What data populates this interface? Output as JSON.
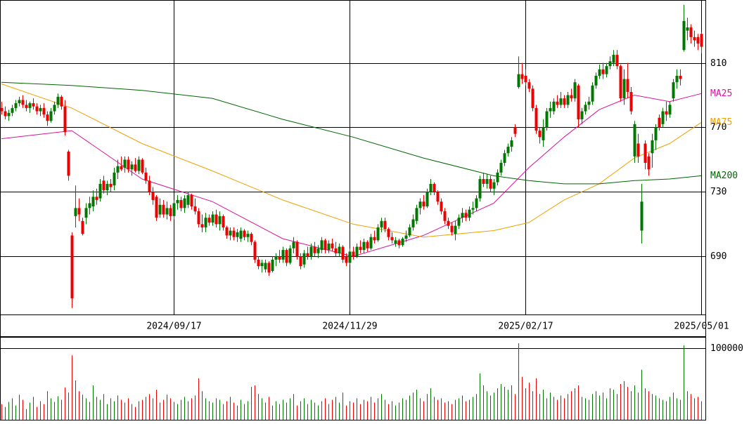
{
  "chart_data": {
    "type": "candlestick",
    "up_color": "#007700",
    "down_color": "#ee0000",
    "ylim": [
      654,
      849
    ],
    "yticks": [
      690,
      730,
      770,
      810
    ],
    "xlim": [
      0,
      200
    ],
    "xticks": [
      {
        "value": 49,
        "label": "2024/09/17"
      },
      {
        "value": 99,
        "label": "2024/11/29"
      },
      {
        "value": 149,
        "label": "2025/02/17"
      },
      {
        "value": 199,
        "label": "2025/05/01"
      }
    ],
    "candles": [
      [
        782,
        786,
        778,
        780
      ],
      [
        780,
        783,
        775,
        777
      ],
      [
        777,
        781,
        774,
        779
      ],
      [
        779,
        784,
        777,
        782
      ],
      [
        782,
        787,
        780,
        785
      ],
      [
        785,
        789,
        783,
        787
      ],
      [
        787,
        790,
        782,
        784
      ],
      [
        784,
        787,
        780,
        782
      ],
      [
        782,
        786,
        779,
        785
      ],
      [
        785,
        788,
        781,
        783
      ],
      [
        783,
        785,
        778,
        780
      ],
      [
        780,
        784,
        777,
        782
      ],
      [
        782,
        785,
        776,
        778
      ],
      [
        778,
        780,
        771,
        774
      ],
      [
        774,
        782,
        773,
        780
      ],
      [
        780,
        786,
        778,
        784
      ],
      [
        784,
        791,
        782,
        789
      ],
      [
        789,
        790,
        781,
        783
      ],
      [
        783,
        787,
        765,
        767
      ],
      [
        755,
        756,
        737,
        740
      ],
      [
        703,
        705,
        658,
        664
      ],
      [
        715,
        734,
        708,
        720
      ],
      [
        720,
        726,
        712,
        716
      ],
      [
        712,
        714,
        703,
        704
      ],
      [
        714,
        723,
        710,
        720
      ],
      [
        720,
        727,
        716,
        723
      ],
      [
        721,
        731,
        718,
        727
      ],
      [
        727,
        732,
        722,
        725
      ],
      [
        726,
        738,
        724,
        735
      ],
      [
        737,
        740,
        729,
        731
      ],
      [
        731,
        737,
        728,
        735
      ],
      [
        735,
        738,
        730,
        733
      ],
      [
        734,
        745,
        731,
        742
      ],
      [
        742,
        750,
        738,
        746
      ],
      [
        746,
        752,
        743,
        744
      ],
      [
        745,
        752,
        742,
        750
      ],
      [
        750,
        752,
        742,
        744
      ],
      [
        744,
        749,
        740,
        747
      ],
      [
        747,
        751,
        742,
        743
      ],
      [
        743,
        752,
        741,
        750
      ],
      [
        750,
        751,
        741,
        742
      ],
      [
        742,
        745,
        735,
        737
      ],
      [
        737,
        740,
        728,
        730
      ],
      [
        730,
        733,
        722,
        725
      ],
      [
        727,
        728,
        712,
        714
      ],
      [
        716,
        726,
        714,
        722
      ],
      [
        722,
        725,
        714,
        716
      ],
      [
        716,
        724,
        713,
        720
      ],
      [
        720,
        722,
        712,
        715
      ],
      [
        715,
        725,
        713,
        723
      ],
      [
        723,
        728,
        719,
        725
      ],
      [
        725,
        727,
        718,
        720
      ],
      [
        720,
        728,
        717,
        726
      ],
      [
        722,
        730,
        720,
        728
      ],
      [
        728,
        729,
        719,
        721
      ],
      [
        721,
        726,
        716,
        718
      ],
      [
        718,
        720,
        708,
        710
      ],
      [
        710,
        716,
        705,
        708
      ],
      [
        708,
        717,
        705,
        714
      ],
      [
        714,
        716,
        709,
        711
      ],
      [
        711,
        718,
        709,
        716
      ],
      [
        716,
        719,
        708,
        710
      ],
      [
        710,
        718,
        706,
        715
      ],
      [
        715,
        716,
        706,
        708
      ],
      [
        708,
        709,
        701,
        703
      ],
      [
        703,
        708,
        700,
        706
      ],
      [
        706,
        708,
        700,
        702
      ],
      [
        702,
        707,
        699,
        705
      ],
      [
        701,
        708,
        699,
        706
      ],
      [
        706,
        707,
        700,
        702
      ],
      [
        702,
        706,
        699,
        704
      ],
      [
        704,
        705,
        697,
        699
      ],
      [
        699,
        700,
        686,
        688
      ],
      [
        688,
        690,
        682,
        684
      ],
      [
        684,
        688,
        680,
        686
      ],
      [
        682,
        688,
        680,
        686
      ],
      [
        686,
        687,
        678,
        680
      ],
      [
        681,
        690,
        680,
        688
      ],
      [
        688,
        692,
        684,
        690
      ],
      [
        690,
        694,
        686,
        688
      ],
      [
        688,
        696,
        686,
        694
      ],
      [
        694,
        695,
        684,
        686
      ],
      [
        686,
        697,
        685,
        695
      ],
      [
        695,
        702,
        692,
        699
      ],
      [
        699,
        700,
        688,
        690
      ],
      [
        690,
        692,
        682,
        684
      ],
      [
        685,
        694,
        683,
        692
      ],
      [
        692,
        696,
        688,
        690
      ],
      [
        690,
        698,
        688,
        696
      ],
      [
        696,
        699,
        690,
        692
      ],
      [
        692,
        697,
        689,
        695
      ],
      [
        694,
        702,
        692,
        700
      ],
      [
        700,
        701,
        692,
        694
      ],
      [
        694,
        700,
        692,
        698
      ],
      [
        698,
        701,
        693,
        695
      ],
      [
        695,
        699,
        690,
        692
      ],
      [
        692,
        698,
        690,
        696
      ],
      [
        696,
        697,
        686,
        688
      ],
      [
        690,
        692,
        684,
        686
      ],
      [
        686,
        695,
        685,
        693
      ],
      [
        693,
        696,
        688,
        690
      ],
      [
        690,
        698,
        689,
        696
      ],
      [
        696,
        700,
        692,
        694
      ],
      [
        694,
        701,
        692,
        699
      ],
      [
        699,
        700,
        693,
        695
      ],
      [
        695,
        704,
        694,
        702
      ],
      [
        702,
        706,
        698,
        700
      ],
      [
        700,
        710,
        699,
        708
      ],
      [
        708,
        714,
        705,
        712
      ],
      [
        712,
        714,
        705,
        707
      ],
      [
        707,
        708,
        700,
        702
      ],
      [
        702,
        705,
        698,
        700
      ],
      [
        698,
        702,
        696,
        700
      ],
      [
        700,
        701,
        695,
        697
      ],
      [
        697,
        702,
        696,
        701
      ],
      [
        701,
        706,
        699,
        703
      ],
      [
        703,
        710,
        702,
        708
      ],
      [
        708,
        716,
        706,
        713
      ],
      [
        712,
        722,
        710,
        720
      ],
      [
        720,
        726,
        716,
        724
      ],
      [
        724,
        728,
        719,
        721
      ],
      [
        721,
        732,
        720,
        730
      ],
      [
        730,
        738,
        728,
        735
      ],
      [
        735,
        736,
        728,
        730
      ],
      [
        730,
        731,
        722,
        724
      ],
      [
        724,
        726,
        716,
        718
      ],
      [
        718,
        720,
        710,
        712
      ],
      [
        712,
        714,
        707,
        709
      ],
      [
        709,
        711,
        703,
        705
      ],
      [
        704,
        712,
        700,
        709
      ],
      [
        709,
        716,
        707,
        714
      ],
      [
        714,
        720,
        711,
        717
      ],
      [
        717,
        719,
        712,
        714
      ],
      [
        714,
        721,
        712,
        719
      ],
      [
        719,
        724,
        716,
        720
      ],
      [
        720,
        728,
        718,
        726
      ],
      [
        726,
        740,
        724,
        738
      ],
      [
        738,
        742,
        733,
        735
      ],
      [
        735,
        741,
        732,
        738
      ],
      [
        738,
        740,
        730,
        732
      ],
      [
        732,
        738,
        728,
        736
      ],
      [
        736,
        744,
        734,
        742
      ],
      [
        742,
        750,
        740,
        748
      ],
      [
        748,
        756,
        746,
        754
      ],
      [
        754,
        760,
        752,
        758
      ],
      [
        758,
        764,
        755,
        762
      ],
      [
        770,
        772,
        764,
        766
      ],
      [
        795,
        814,
        794,
        803
      ],
      [
        803,
        810,
        797,
        800
      ],
      [
        802,
        806,
        796,
        798
      ],
      [
        798,
        800,
        792,
        794
      ],
      [
        794,
        796,
        780,
        782
      ],
      [
        782,
        784,
        766,
        768
      ],
      [
        768,
        770,
        760,
        764
      ],
      [
        762,
        775,
        758,
        770
      ],
      [
        770,
        782,
        768,
        780
      ],
      [
        780,
        786,
        776,
        782
      ],
      [
        780,
        788,
        778,
        786
      ],
      [
        786,
        790,
        782,
        784
      ],
      [
        784,
        792,
        782,
        788
      ],
      [
        788,
        790,
        782,
        784
      ],
      [
        784,
        792,
        782,
        790
      ],
      [
        790,
        794,
        786,
        788
      ],
      [
        788,
        800,
        786,
        798
      ],
      [
        796,
        797,
        770,
        775
      ],
      [
        775,
        782,
        772,
        780
      ],
      [
        780,
        786,
        778,
        784
      ],
      [
        784,
        789,
        781,
        786
      ],
      [
        786,
        798,
        784,
        796
      ],
      [
        796,
        804,
        794,
        802
      ],
      [
        802,
        809,
        800,
        806
      ],
      [
        806,
        810,
        800,
        803
      ],
      [
        803,
        810,
        801,
        808
      ],
      [
        808,
        814,
        806,
        811
      ],
      [
        810,
        818,
        808,
        815
      ],
      [
        815,
        818,
        806,
        808
      ],
      [
        808,
        809,
        786,
        788
      ],
      [
        788,
        806,
        784,
        800
      ],
      [
        800,
        810,
        788,
        792
      ],
      [
        792,
        795,
        778,
        780
      ],
      [
        752,
        774,
        748,
        772
      ],
      [
        760,
        766,
        748,
        752
      ],
      [
        706,
        735,
        698,
        724
      ],
      [
        760,
        762,
        744,
        748
      ],
      [
        752,
        754,
        740,
        744
      ],
      [
        754,
        766,
        745,
        762
      ],
      [
        762,
        772,
        756,
        770
      ],
      [
        776,
        778,
        768,
        770
      ],
      [
        772,
        782,
        770,
        780
      ],
      [
        780,
        786,
        774,
        778
      ],
      [
        778,
        786,
        776,
        784
      ],
      [
        788,
        800,
        786,
        798
      ],
      [
        798,
        806,
        794,
        802
      ],
      [
        802,
        806,
        796,
        800
      ],
      [
        818,
        846,
        817,
        836
      ],
      [
        830,
        838,
        824,
        832
      ],
      [
        832,
        834,
        822,
        826
      ],
      [
        826,
        830,
        820,
        824
      ],
      [
        826,
        828,
        818,
        822
      ],
      [
        828,
        829,
        816,
        820
      ]
    ],
    "ma_x": [
      0,
      20,
      40,
      60,
      80,
      100,
      120,
      140,
      150,
      160,
      170,
      180,
      190,
      199
    ],
    "series": [
      {
        "name": "MA25",
        "color": "#dd1199",
        "values": [
          763,
          768,
          738,
          724,
          701,
          690,
          703,
          723,
          745,
          764,
          781,
          790,
          786,
          791
        ]
      },
      {
        "name": "MA75",
        "color": "#f0a000",
        "values": [
          797,
          782,
          760,
          743,
          725,
          710,
          702,
          706,
          711,
          725,
          735,
          751,
          760,
          773
        ]
      },
      {
        "name": "MA200",
        "color": "#006600",
        "values": [
          798,
          796,
          793,
          788,
          775,
          764,
          751,
          740,
          737,
          735,
          735,
          737,
          738,
          740
        ]
      }
    ],
    "volume": [
      22000,
      18000,
      25000,
      30000,
      20000,
      35000,
      28000,
      15000,
      24000,
      32000,
      18000,
      26000,
      22000,
      40000,
      30000,
      25000,
      33000,
      28000,
      45000,
      38000,
      90000,
      55000,
      40000,
      35000,
      30000,
      25000,
      48000,
      32000,
      28000,
      36000,
      22000,
      30000,
      26000,
      34000,
      28000,
      24000,
      30000,
      22000,
      18000,
      26000,
      28000,
      32000,
      36000,
      30000,
      42000,
      24000,
      28000,
      35000,
      30000,
      25000,
      22000,
      28000,
      32000,
      26000,
      30000,
      34000,
      58000,
      40000,
      30000,
      26000,
      24000,
      30000,
      28000,
      22000,
      26000,
      32000,
      24000,
      20000,
      28000,
      22000,
      26000,
      46000,
      48000,
      36000,
      30000,
      24000,
      32000,
      20000,
      26000,
      22000,
      28000,
      24000,
      30000,
      36000,
      20000,
      26000,
      30000,
      22000,
      28000,
      24000,
      20000,
      26000,
      30000,
      22000,
      28000,
      32000,
      24000,
      38000,
      20000,
      26000,
      24000,
      30000,
      22000,
      28000,
      26000,
      32000,
      24000,
      30000,
      36000,
      28000,
      22000,
      26000,
      20000,
      24000,
      30000,
      28000,
      34000,
      38000,
      42000,
      30000,
      26000,
      36000,
      44000,
      32000,
      28000,
      30000,
      24000,
      26000,
      22000,
      28000,
      30000,
      34000,
      26000,
      28000,
      32000,
      36000,
      65000,
      48000,
      40000,
      34000,
      38000,
      44000,
      50000,
      46000,
      42000,
      48000,
      36000,
      107000,
      60000,
      44000,
      52000,
      40000,
      58000,
      36000,
      42000,
      30000,
      38000,
      32000,
      28000,
      34000,
      30000,
      36000,
      40000,
      44000,
      48000,
      32000,
      30000,
      28000,
      36000,
      40000,
      34000,
      38000,
      30000,
      44000,
      42000,
      36000,
      50000,
      54000,
      46000,
      40000,
      48000,
      38000,
      70000,
      44000,
      40000,
      36000,
      34000,
      30000,
      28000,
      26000,
      32000,
      38000,
      30000,
      28000,
      104000,
      40000,
      36000,
      30000,
      32000,
      26000
    ],
    "volume_ylim": [
      0,
      115700
    ],
    "volume_yticks": [
      100000
    ]
  }
}
